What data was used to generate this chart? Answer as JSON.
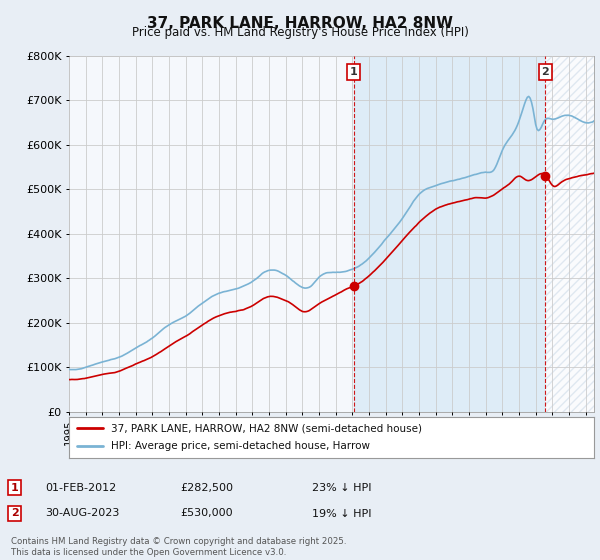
{
  "title": "37, PARK LANE, HARROW, HA2 8NW",
  "subtitle": "Price paid vs. HM Land Registry's House Price Index (HPI)",
  "ylim": [
    0,
    800000
  ],
  "yticks": [
    0,
    100000,
    200000,
    300000,
    400000,
    500000,
    600000,
    700000,
    800000
  ],
  "ytick_labels": [
    "£0",
    "£100K",
    "£200K",
    "£300K",
    "£400K",
    "£500K",
    "£600K",
    "£700K",
    "£800K"
  ],
  "hpi_color": "#7ab3d4",
  "price_color": "#cc0000",
  "marker1_date_idx": 205,
  "marker2_date_idx": 344,
  "marker1_price": 282500,
  "marker2_price": 530000,
  "marker1_label": "1",
  "marker2_label": "2",
  "legend_line1": "37, PARK LANE, HARROW, HA2 8NW (semi-detached house)",
  "legend_line2": "HPI: Average price, semi-detached house, Harrow",
  "annotation1_date": "01-FEB-2012",
  "annotation1_price": "£282,500",
  "annotation1_hpi": "23% ↓ HPI",
  "annotation2_date": "30-AUG-2023",
  "annotation2_price": "£530,000",
  "annotation2_hpi": "19% ↓ HPI",
  "footer": "Contains HM Land Registry data © Crown copyright and database right 2025.\nThis data is licensed under the Open Government Licence v3.0.",
  "background_color": "#e8eef5",
  "plot_bg_color": "#f5f8fc",
  "grid_color": "#cccccc",
  "xmin": 1995.0,
  "xmax": 2026.5,
  "shade_color": "#d0e4f5",
  "hatch_color": "#c5d5e5"
}
